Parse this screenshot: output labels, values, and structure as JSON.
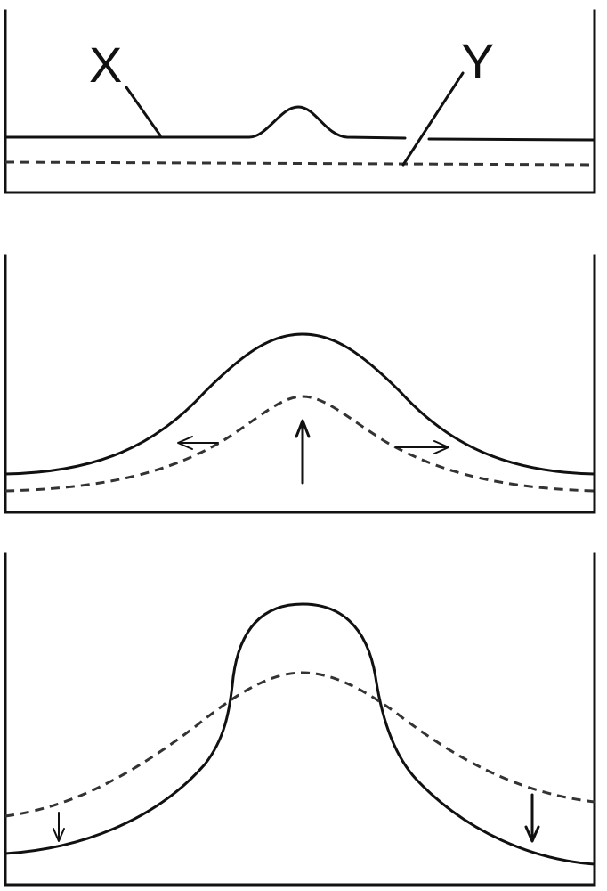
{
  "labels": {
    "x": "X",
    "y": "Y"
  }
}
